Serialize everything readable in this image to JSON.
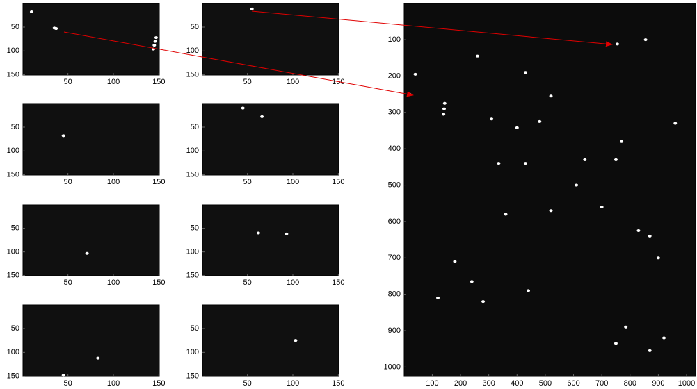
{
  "chart_data": [
    {
      "type": "image",
      "xlim": [
        0.5,
        150.5
      ],
      "ylim": [
        0.5,
        150.5
      ],
      "xticks": [
        50,
        100,
        150
      ],
      "yticks": [
        50,
        100,
        150
      ],
      "background": "#101010",
      "color": "#ffffff",
      "x": [
        35,
        37,
        144,
        145,
        146,
        147,
        10
      ],
      "y": [
        52,
        53,
        96,
        88,
        80,
        72,
        18
      ]
    },
    {
      "type": "image",
      "xlim": [
        0.5,
        150.5
      ],
      "ylim": [
        0.5,
        150.5
      ],
      "xticks": [
        50,
        100,
        150
      ],
      "yticks": [
        50,
        100,
        150
      ],
      "background": "#101010",
      "color": "#ffffff",
      "x": [
        55
      ],
      "y": [
        12
      ]
    },
    {
      "type": "image",
      "xlim": [
        0.5,
        150.5
      ],
      "ylim": [
        0.5,
        150.5
      ],
      "xticks": [
        50,
        100,
        150
      ],
      "yticks": [
        50,
        100,
        150
      ],
      "background": "#101010",
      "color": "#ffffff",
      "x": [
        45
      ],
      "y": [
        68
      ]
    },
    {
      "type": "image",
      "xlim": [
        0.5,
        150.5
      ],
      "ylim": [
        0.5,
        150.5
      ],
      "xticks": [
        50,
        100,
        150
      ],
      "yticks": [
        50,
        100,
        150
      ],
      "background": "#101010",
      "color": "#ffffff",
      "x": [
        66,
        45
      ],
      "y": [
        28,
        10
      ]
    },
    {
      "type": "image",
      "xlim": [
        0.5,
        150.5
      ],
      "ylim": [
        0.5,
        150.5
      ],
      "xticks": [
        50,
        100,
        150
      ],
      "yticks": [
        50,
        100,
        150
      ],
      "background": "#101010",
      "color": "#ffffff",
      "x": [
        71
      ],
      "y": [
        103
      ]
    },
    {
      "type": "image",
      "xlim": [
        0.5,
        150.5
      ],
      "ylim": [
        0.5,
        150.5
      ],
      "xticks": [
        50,
        100,
        150
      ],
      "yticks": [
        50,
        100,
        150
      ],
      "background": "#101010",
      "color": "#ffffff",
      "x": [
        62,
        93
      ],
      "y": [
        60,
        62
      ]
    },
    {
      "type": "image",
      "xlim": [
        0.5,
        150.5
      ],
      "ylim": [
        0.5,
        150.5
      ],
      "xticks": [
        50,
        100,
        150
      ],
      "yticks": [
        50,
        100,
        150
      ],
      "background": "#101010",
      "color": "#ffffff",
      "x": [
        83,
        45
      ],
      "y": [
        112,
        148
      ]
    },
    {
      "type": "image",
      "xlim": [
        0.5,
        150.5
      ],
      "ylim": [
        0.5,
        150.5
      ],
      "xticks": [
        50,
        100,
        150
      ],
      "yticks": [
        50,
        100,
        150
      ],
      "background": "#101010",
      "color": "#ffffff",
      "x": [
        103
      ],
      "y": [
        75
      ]
    },
    {
      "type": "image",
      "xlim": [
        0.5,
        1032
      ],
      "ylim": [
        0.5,
        1026
      ],
      "xticks": [
        100,
        200,
        300,
        400,
        500,
        600,
        700,
        800,
        900,
        1000
      ],
      "yticks": [
        100,
        200,
        300,
        400,
        500,
        600,
        700,
        800,
        900,
        1000
      ],
      "background": "#0c0c0c",
      "color": "#ffffff",
      "x": [
        755,
        20,
        140,
        142,
        144,
        310,
        400,
        335,
        430,
        750,
        770,
        855,
        960,
        520,
        430,
        700,
        830,
        870,
        640,
        520,
        360,
        180,
        240,
        280,
        440,
        750,
        870,
        920,
        480,
        260,
        40,
        785,
        120,
        610,
        900
      ],
      "y": [
        112,
        250,
        305,
        290,
        275,
        318,
        342,
        440,
        440,
        430,
        380,
        100,
        330,
        255,
        190,
        560,
        625,
        640,
        430,
        570,
        580,
        710,
        765,
        820,
        790,
        935,
        955,
        920,
        325,
        145,
        195,
        890,
        810,
        500,
        700
      ]
    }
  ]
}
